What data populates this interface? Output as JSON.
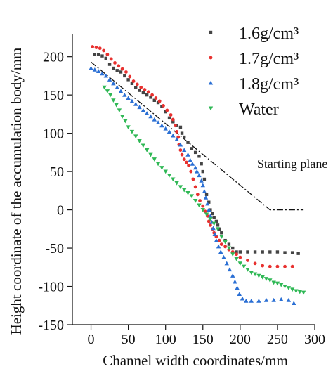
{
  "chart_data": {
    "type": "scatter",
    "xlabel": "Channel width coordinates/mm",
    "ylabel": "Height coordinate of the accumulation body/mm",
    "xlim": [
      -25,
      300
    ],
    "ylim": [
      -150,
      230
    ],
    "x_ticks": [
      0,
      50,
      100,
      150,
      200,
      250,
      300
    ],
    "y_ticks": [
      -150,
      -100,
      -50,
      0,
      50,
      100,
      150,
      200
    ],
    "grid": false,
    "legend_position": "top-right",
    "series": [
      {
        "name": "1.6g/cm³",
        "color": "#444444",
        "marker": "square",
        "points": [
          [
            5,
            203
          ],
          [
            10,
            203
          ],
          [
            15,
            201
          ],
          [
            20,
            198
          ],
          [
            25,
            190
          ],
          [
            30,
            185
          ],
          [
            35,
            182
          ],
          [
            40,
            180
          ],
          [
            45,
            175
          ],
          [
            50,
            170
          ],
          [
            55,
            165
          ],
          [
            60,
            160
          ],
          [
            65,
            156
          ],
          [
            70,
            153
          ],
          [
            75,
            150
          ],
          [
            80,
            147
          ],
          [
            85,
            143
          ],
          [
            90,
            140
          ],
          [
            95,
            135
          ],
          [
            100,
            128
          ],
          [
            105,
            120
          ],
          [
            110,
            115
          ],
          [
            115,
            110
          ],
          [
            120,
            108
          ],
          [
            122,
            100
          ],
          [
            125,
            95
          ],
          [
            130,
            88
          ],
          [
            135,
            80
          ],
          [
            140,
            75
          ],
          [
            145,
            70
          ],
          [
            148,
            60
          ],
          [
            150,
            50
          ],
          [
            152,
            40
          ],
          [
            155,
            20
          ],
          [
            158,
            10
          ],
          [
            160,
            0
          ],
          [
            163,
            -5
          ],
          [
            165,
            -10
          ],
          [
            168,
            -15
          ],
          [
            170,
            -20
          ],
          [
            172,
            -25
          ],
          [
            175,
            -30
          ],
          [
            180,
            -40
          ],
          [
            185,
            -45
          ],
          [
            190,
            -50
          ],
          [
            195,
            -55
          ],
          [
            200,
            -55
          ],
          [
            210,
            -55
          ],
          [
            220,
            -55
          ],
          [
            230,
            -55
          ],
          [
            240,
            -55
          ],
          [
            250,
            -55
          ],
          [
            260,
            -56
          ],
          [
            270,
            -56
          ],
          [
            278,
            -57
          ]
        ]
      },
      {
        "name": "1.7g/cm³",
        "color": "#e8312f",
        "marker": "circle",
        "points": [
          [
            2,
            213
          ],
          [
            7,
            212
          ],
          [
            12,
            211
          ],
          [
            17,
            208
          ],
          [
            22,
            203
          ],
          [
            27,
            197
          ],
          [
            32,
            192
          ],
          [
            37,
            188
          ],
          [
            42,
            184
          ],
          [
            47,
            180
          ],
          [
            52,
            174
          ],
          [
            57,
            168
          ],
          [
            62,
            164
          ],
          [
            67,
            160
          ],
          [
            72,
            157
          ],
          [
            77,
            154
          ],
          [
            82,
            150
          ],
          [
            87,
            146
          ],
          [
            92,
            142
          ],
          [
            97,
            136
          ],
          [
            102,
            130
          ],
          [
            107,
            124
          ],
          [
            110,
            118
          ],
          [
            113,
            110
          ],
          [
            115,
            102
          ],
          [
            117,
            95
          ],
          [
            118,
            85
          ],
          [
            120,
            78
          ],
          [
            122,
            72
          ],
          [
            125,
            66
          ],
          [
            128,
            62
          ],
          [
            131,
            58
          ],
          [
            134,
            50
          ],
          [
            137,
            40
          ],
          [
            140,
            30
          ],
          [
            143,
            20
          ],
          [
            146,
            12
          ],
          [
            150,
            5
          ],
          [
            153,
            -2
          ],
          [
            156,
            -8
          ],
          [
            158,
            -15
          ],
          [
            160,
            -20
          ],
          [
            163,
            -25
          ],
          [
            165,
            -30
          ],
          [
            168,
            -35
          ],
          [
            172,
            -40
          ],
          [
            175,
            -45
          ],
          [
            180,
            -48
          ],
          [
            185,
            -52
          ],
          [
            190,
            -55
          ],
          [
            195,
            -58
          ],
          [
            200,
            -62
          ],
          [
            210,
            -66
          ],
          [
            220,
            -70
          ],
          [
            230,
            -73
          ],
          [
            240,
            -74
          ],
          [
            250,
            -74
          ],
          [
            260,
            -74
          ],
          [
            270,
            -74
          ]
        ]
      },
      {
        "name": "1.8g/cm³",
        "color": "#2a6fd4",
        "marker": "triangle",
        "points": [
          [
            0,
            185
          ],
          [
            5,
            183
          ],
          [
            10,
            181
          ],
          [
            15,
            178
          ],
          [
            20,
            175
          ],
          [
            25,
            170
          ],
          [
            30,
            165
          ],
          [
            35,
            160
          ],
          [
            40,
            155
          ],
          [
            45,
            150
          ],
          [
            50,
            146
          ],
          [
            55,
            142
          ],
          [
            60,
            138
          ],
          [
            65,
            134
          ],
          [
            70,
            130
          ],
          [
            75,
            126
          ],
          [
            80,
            122
          ],
          [
            85,
            118
          ],
          [
            90,
            114
          ],
          [
            95,
            110
          ],
          [
            100,
            106
          ],
          [
            105,
            102
          ],
          [
            110,
            97
          ],
          [
            115,
            92
          ],
          [
            120,
            85
          ],
          [
            125,
            78
          ],
          [
            130,
            72
          ],
          [
            133,
            65
          ],
          [
            136,
            60
          ],
          [
            140,
            55
          ],
          [
            142,
            50
          ],
          [
            145,
            45
          ],
          [
            148,
            38
          ],
          [
            150,
            32
          ],
          [
            152,
            24
          ],
          [
            154,
            16
          ],
          [
            156,
            8
          ],
          [
            158,
            0
          ],
          [
            160,
            -8
          ],
          [
            162,
            -16
          ],
          [
            164,
            -24
          ],
          [
            166,
            -32
          ],
          [
            168,
            -40
          ],
          [
            171,
            -48
          ],
          [
            174,
            -55
          ],
          [
            178,
            -62
          ],
          [
            182,
            -70
          ],
          [
            186,
            -78
          ],
          [
            190,
            -86
          ],
          [
            193,
            -94
          ],
          [
            196,
            -102
          ],
          [
            199,
            -110
          ],
          [
            203,
            -116
          ],
          [
            208,
            -119
          ],
          [
            215,
            -119
          ],
          [
            225,
            -119
          ],
          [
            235,
            -118
          ],
          [
            245,
            -118
          ],
          [
            255,
            -117
          ],
          [
            265,
            -118
          ],
          [
            272,
            -122
          ]
        ]
      },
      {
        "name": "Water",
        "color": "#2fb855",
        "marker": "triangle-down",
        "points": [
          [
            18,
            160
          ],
          [
            22,
            155
          ],
          [
            26,
            150
          ],
          [
            30,
            143
          ],
          [
            34,
            137
          ],
          [
            38,
            130
          ],
          [
            42,
            122
          ],
          [
            46,
            116
          ],
          [
            50,
            108
          ],
          [
            55,
            102
          ],
          [
            60,
            96
          ],
          [
            65,
            90
          ],
          [
            70,
            84
          ],
          [
            75,
            78
          ],
          [
            80,
            72
          ],
          [
            85,
            66
          ],
          [
            90,
            60
          ],
          [
            95,
            55
          ],
          [
            100,
            50
          ],
          [
            105,
            45
          ],
          [
            110,
            40
          ],
          [
            115,
            35
          ],
          [
            120,
            30
          ],
          [
            125,
            26
          ],
          [
            130,
            22
          ],
          [
            135,
            18
          ],
          [
            140,
            12
          ],
          [
            145,
            6
          ],
          [
            150,
            0
          ],
          [
            155,
            -6
          ],
          [
            160,
            -12
          ],
          [
            165,
            -18
          ],
          [
            170,
            -25
          ],
          [
            175,
            -35
          ],
          [
            180,
            -42
          ],
          [
            185,
            -50
          ],
          [
            190,
            -58
          ],
          [
            195,
            -64
          ],
          [
            200,
            -70
          ],
          [
            205,
            -74
          ],
          [
            210,
            -78
          ],
          [
            215,
            -82
          ],
          [
            220,
            -84
          ],
          [
            225,
            -86
          ],
          [
            230,
            -88
          ],
          [
            235,
            -90
          ],
          [
            240,
            -92
          ],
          [
            245,
            -95
          ],
          [
            250,
            -96
          ],
          [
            255,
            -98
          ],
          [
            260,
            -100
          ],
          [
            265,
            -102
          ],
          [
            270,
            -104
          ],
          [
            275,
            -106
          ],
          [
            280,
            -107
          ],
          [
            285,
            -108
          ]
        ]
      }
    ],
    "reference_line": {
      "points": [
        [
          0,
          193
        ],
        [
          240,
          0
        ],
        [
          285,
          0
        ]
      ],
      "color": "#111111",
      "style": "dash-dot"
    },
    "annotations": [
      {
        "text": "Starting plane",
        "x": 270,
        "y": 60
      }
    ]
  }
}
